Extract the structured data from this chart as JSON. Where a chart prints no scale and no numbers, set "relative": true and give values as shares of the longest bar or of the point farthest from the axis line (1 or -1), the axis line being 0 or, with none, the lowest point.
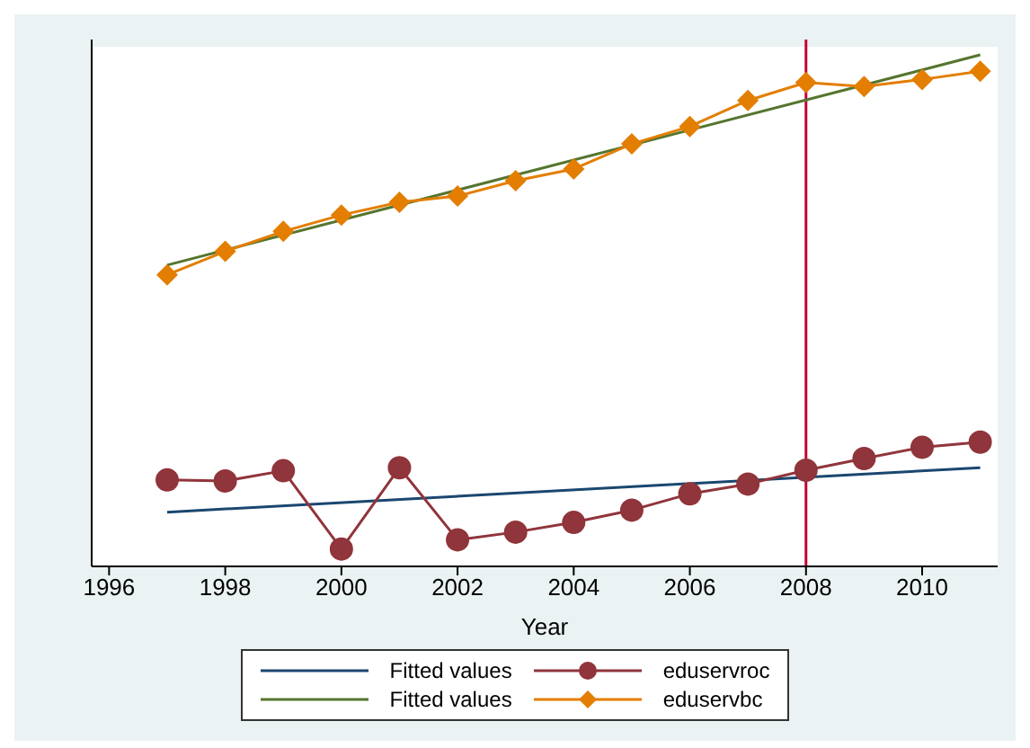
{
  "chart_data": {
    "type": "line",
    "relative": true,
    "xlabel": "Year",
    "xlim": [
      1995.7,
      2011.3
    ],
    "xticks": [
      1996,
      1998,
      2000,
      2002,
      2004,
      2006,
      2008,
      2010
    ],
    "legend": "bottom",
    "ref_lines": [
      {
        "axis": "x",
        "value": 2008,
        "color": "#c10534"
      }
    ],
    "series": [
      {
        "name": "Fitted values",
        "color": "#1a476f",
        "marker": "none",
        "x": [
          1997,
          2011
        ],
        "values": [
          0.106,
          0.193
        ]
      },
      {
        "name": "eduservroc",
        "color": "#90353b",
        "marker": "circle",
        "x": [
          1997,
          1998,
          1999,
          2000,
          2001,
          2002,
          2003,
          2004,
          2005,
          2006,
          2007,
          2008,
          2009,
          2010,
          2011
        ],
        "values": [
          0.169,
          0.167,
          0.187,
          0.034,
          0.193,
          0.052,
          0.067,
          0.086,
          0.11,
          0.142,
          0.161,
          0.188,
          0.211,
          0.233,
          0.243
        ]
      },
      {
        "name": "Fitted values",
        "color": "#55752f",
        "marker": "none",
        "x": [
          1997,
          2011
        ],
        "values": [
          0.589,
          1
        ]
      },
      {
        "name": "eduservbc",
        "color": "#e37e00",
        "marker": "diamond",
        "x": [
          1997,
          1998,
          1999,
          2000,
          2001,
          2002,
          2003,
          2004,
          2005,
          2006,
          2007,
          2008,
          2009,
          2010,
          2011
        ],
        "values": [
          0.57,
          0.616,
          0.655,
          0.687,
          0.712,
          0.724,
          0.754,
          0.777,
          0.826,
          0.86,
          0.911,
          0.946,
          0.938,
          0.952,
          0.968
        ]
      }
    ]
  }
}
